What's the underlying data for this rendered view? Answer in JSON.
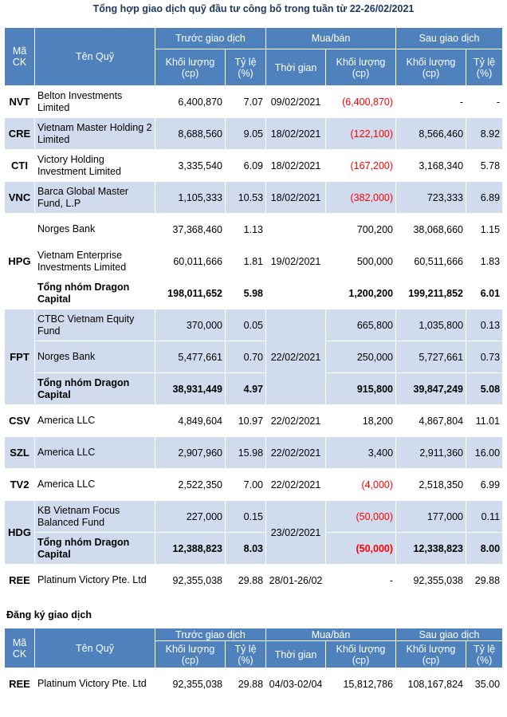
{
  "title": "Tổng hợp giao dịch quỹ đầu tư công bố trong tuần từ 22-26/02/2021",
  "headers": {
    "ma_ck": "Mã CK",
    "ten_quy": "Tên Quỹ",
    "truoc": "Trước giao dịch",
    "mua_ban": "Mua/bán",
    "sau": "Sau giao dịch",
    "khoi_luong": "Khối lượng (cp)",
    "ty_le": "Tỷ lệ (%)",
    "thoi_gian": "Thời gian"
  },
  "rows": [
    {
      "code": "NVT",
      "fund": "Belton Investments Limited",
      "vol_before": "6,400,870",
      "pct_before": "7.07",
      "time": "09/02/2021",
      "trade": "(6,400,870)",
      "vol_after": "-",
      "pct_after": "-"
    },
    {
      "code": "CRE",
      "fund": "Vietnam Master Holding 2 Limited",
      "vol_before": "8,688,560",
      "pct_before": "9.05",
      "time": "18/02/2021",
      "trade": "(122,100)",
      "vol_after": "8,566,460",
      "pct_after": "8.92"
    },
    {
      "code": "CTI",
      "fund": "Victory Holding Investment Limited",
      "vol_before": "3,335,540",
      "pct_before": "6.09",
      "time": "18/02/2021",
      "trade": "(167,200)",
      "vol_after": "3,168,340",
      "pct_after": "5.78"
    },
    {
      "code": "VNC",
      "fund": "Barca Global Master Fund, L.P",
      "vol_before": "1,105,333",
      "pct_before": "10.53",
      "time": "18/02/2021",
      "trade": "(382,000)",
      "vol_after": "723,333",
      "pct_after": "6.89"
    },
    {
      "code": "HPG",
      "fund": "Norges Bank",
      "vol_before": "37,368,460",
      "pct_before": "1.13",
      "time": "19/02/2021",
      "trade": "700,200",
      "vol_after": "38,068,660",
      "pct_after": "1.15"
    },
    {
      "fund": "Vietnam Enterprise Investments Limited",
      "vol_before": "60,011,666",
      "pct_before": "1.81",
      "trade": "500,000",
      "vol_after": "60,511,666",
      "pct_after": "1.83"
    },
    {
      "fund": "Tổng nhóm Dragon Capital",
      "vol_before": "198,011,652",
      "pct_before": "5.98",
      "trade": "1,200,200",
      "vol_after": "199,211,852",
      "pct_after": "6.01"
    },
    {
      "code": "FPT",
      "fund": "CTBC Vietnam Equity Fund",
      "vol_before": "370,000",
      "pct_before": "0.05",
      "time": "22/02/2021",
      "trade": "665,800",
      "vol_after": "1,035,800",
      "pct_after": "0.13"
    },
    {
      "fund": "Norges Bank",
      "vol_before": "5,477,661",
      "pct_before": "0.70",
      "trade": "250,000",
      "vol_after": "5,727,661",
      "pct_after": "0.73"
    },
    {
      "fund": "Tổng nhóm Dragon Capital",
      "vol_before": "38,931,449",
      "pct_before": "4.97",
      "trade": "915,800",
      "vol_after": "39,847,249",
      "pct_after": "5.08"
    },
    {
      "code": "CSV",
      "fund": "America LLC",
      "vol_before": "4,849,604",
      "pct_before": "10.97",
      "time": "22/02/2021",
      "trade": "18,200",
      "vol_after": "4,867,804",
      "pct_after": "11.01"
    },
    {
      "code": "SZL",
      "fund": "America LLC",
      "vol_before": "2,907,960",
      "pct_before": "15.98",
      "time": "22/02/2021",
      "trade": "3,400",
      "vol_after": "2,911,360",
      "pct_after": "16.00"
    },
    {
      "code": "TV2",
      "fund": "America LLC",
      "vol_before": "2,522,350",
      "pct_before": "7.00",
      "time": "22/02/2021",
      "trade": "(4,000)",
      "vol_after": "2,518,350",
      "pct_after": "6.99"
    },
    {
      "code": "HDG",
      "fund": "KB Vietnam Focus Balanced Fund",
      "vol_before": "227,000",
      "pct_before": "0.15",
      "time": "23/02/2021",
      "trade": "(50,000)",
      "vol_after": "177,000",
      "pct_after": "0.11"
    },
    {
      "fund": "Tổng nhóm Dragon Capital",
      "vol_before": "12,388,823",
      "pct_before": "8.03",
      "trade": "(50,000)",
      "vol_after": "12,338,823",
      "pct_after": "8.00"
    },
    {
      "code": "REE",
      "fund": "Platinum Victory Pte. Ltd",
      "vol_before": "92,355,038",
      "pct_before": "29.88",
      "time": "28/01-26/02",
      "trade": "-",
      "vol_after": "92,355,038",
      "pct_after": "29.88"
    }
  ],
  "registration": {
    "section_title": "Đăng ký giao dịch",
    "row": {
      "code": "REE",
      "fund": "Platinum Victory Pte. Ltd",
      "vol_before": "92,355,038",
      "pct_before": "29.88",
      "time": "04/03-02/04",
      "trade": "15,812,786",
      "vol_after": "108,167,824",
      "pct_after": "35.00"
    }
  },
  "colors": {
    "header_bg": "#4f81bd",
    "band_bg": "#d0dbee",
    "negative": "#ff0000",
    "title": "#1f3864"
  }
}
